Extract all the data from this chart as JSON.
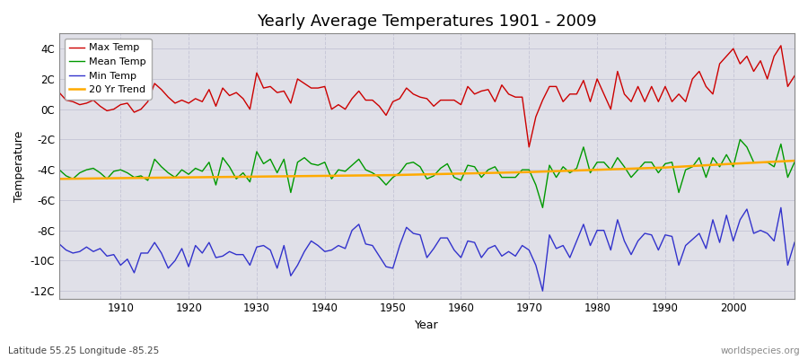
{
  "title": "Yearly Average Temperatures 1901 - 2009",
  "xlabel": "Year",
  "ylabel": "Temperature",
  "subtitle_lat": "Latitude 55.25 Longitude -85.25",
  "credit": "worldspecies.org",
  "years": [
    1901,
    1902,
    1903,
    1904,
    1905,
    1906,
    1907,
    1908,
    1909,
    1910,
    1911,
    1912,
    1913,
    1914,
    1915,
    1916,
    1917,
    1918,
    1919,
    1920,
    1921,
    1922,
    1923,
    1924,
    1925,
    1926,
    1927,
    1928,
    1929,
    1930,
    1931,
    1932,
    1933,
    1934,
    1935,
    1936,
    1937,
    1938,
    1939,
    1940,
    1941,
    1942,
    1943,
    1944,
    1945,
    1946,
    1947,
    1948,
    1949,
    1950,
    1951,
    1952,
    1953,
    1954,
    1955,
    1956,
    1957,
    1958,
    1959,
    1960,
    1961,
    1962,
    1963,
    1964,
    1965,
    1966,
    1967,
    1968,
    1969,
    1970,
    1971,
    1972,
    1973,
    1974,
    1975,
    1976,
    1977,
    1978,
    1979,
    1980,
    1981,
    1982,
    1983,
    1984,
    1985,
    1986,
    1987,
    1988,
    1989,
    1990,
    1991,
    1992,
    1993,
    1994,
    1995,
    1996,
    1997,
    1998,
    1999,
    2000,
    2001,
    2002,
    2003,
    2004,
    2005,
    2006,
    2007,
    2008,
    2009
  ],
  "max_temp": [
    1.1,
    0.6,
    0.5,
    0.3,
    0.4,
    0.6,
    0.2,
    -0.1,
    0.0,
    0.3,
    0.4,
    -0.2,
    0.0,
    0.5,
    1.7,
    1.3,
    0.8,
    0.4,
    0.6,
    0.4,
    0.7,
    0.5,
    1.3,
    0.2,
    1.4,
    0.9,
    1.1,
    0.7,
    0.0,
    2.4,
    1.4,
    1.5,
    1.1,
    1.2,
    0.4,
    2.0,
    1.7,
    1.4,
    1.4,
    1.5,
    0.0,
    0.3,
    0.0,
    0.7,
    1.2,
    0.6,
    0.6,
    0.2,
    -0.4,
    0.5,
    0.7,
    1.4,
    1.0,
    0.8,
    0.7,
    0.2,
    0.6,
    0.6,
    0.6,
    0.3,
    1.5,
    1.0,
    1.2,
    1.3,
    0.5,
    1.6,
    1.0,
    0.8,
    0.8,
    -2.5,
    -0.5,
    0.6,
    1.5,
    1.5,
    0.5,
    1.0,
    1.0,
    1.9,
    0.5,
    2.0,
    1.0,
    0.0,
    2.5,
    1.0,
    0.5,
    1.5,
    0.5,
    1.5,
    0.5,
    1.5,
    0.5,
    1.0,
    0.5,
    2.0,
    2.5,
    1.5,
    1.0,
    3.0,
    3.5,
    4.0,
    3.0,
    3.5,
    2.5,
    3.2,
    2.0,
    3.5,
    4.2,
    1.5,
    2.2
  ],
  "mean_temp": [
    -4.0,
    -4.4,
    -4.6,
    -4.2,
    -4.0,
    -3.9,
    -4.2,
    -4.6,
    -4.1,
    -4.0,
    -4.2,
    -4.5,
    -4.4,
    -4.7,
    -3.3,
    -3.8,
    -4.2,
    -4.5,
    -4.0,
    -4.3,
    -3.9,
    -4.1,
    -3.5,
    -5.0,
    -3.2,
    -3.8,
    -4.6,
    -4.2,
    -4.8,
    -2.8,
    -3.6,
    -3.3,
    -4.2,
    -3.3,
    -5.5,
    -3.5,
    -3.2,
    -3.6,
    -3.7,
    -3.5,
    -4.6,
    -4.0,
    -4.1,
    -3.7,
    -3.3,
    -4.0,
    -4.2,
    -4.5,
    -5.0,
    -4.5,
    -4.2,
    -3.6,
    -3.5,
    -3.8,
    -4.6,
    -4.4,
    -3.9,
    -3.6,
    -4.5,
    -4.7,
    -3.7,
    -3.8,
    -4.5,
    -4.0,
    -3.8,
    -4.5,
    -4.5,
    -4.5,
    -4.0,
    -4.0,
    -5.0,
    -6.5,
    -3.7,
    -4.5,
    -3.8,
    -4.2,
    -3.9,
    -2.5,
    -4.2,
    -3.5,
    -3.5,
    -4.0,
    -3.2,
    -3.8,
    -4.5,
    -4.0,
    -3.5,
    -3.5,
    -4.2,
    -3.6,
    -3.5,
    -5.5,
    -4.0,
    -3.8,
    -3.2,
    -4.5,
    -3.2,
    -3.8,
    -3.0,
    -3.8,
    -2.0,
    -2.5,
    -3.5,
    -3.5,
    -3.5,
    -3.8,
    -2.3,
    -4.5,
    -3.5
  ],
  "min_temp": [
    -8.9,
    -9.3,
    -9.5,
    -9.4,
    -9.1,
    -9.4,
    -9.2,
    -9.7,
    -9.6,
    -10.3,
    -9.9,
    -10.8,
    -9.5,
    -9.5,
    -8.8,
    -9.5,
    -10.5,
    -10.0,
    -9.2,
    -10.4,
    -9.0,
    -9.5,
    -8.8,
    -9.8,
    -9.7,
    -9.4,
    -9.6,
    -9.6,
    -10.3,
    -9.1,
    -9.0,
    -9.3,
    -10.5,
    -9.0,
    -11.0,
    -10.3,
    -9.4,
    -8.7,
    -9.0,
    -9.4,
    -9.3,
    -9.0,
    -9.2,
    -8.0,
    -7.6,
    -8.9,
    -9.0,
    -9.7,
    -10.4,
    -10.5,
    -9.0,
    -7.8,
    -8.2,
    -8.3,
    -9.8,
    -9.2,
    -8.5,
    -8.5,
    -9.3,
    -9.8,
    -8.7,
    -8.8,
    -9.8,
    -9.2,
    -9.0,
    -9.7,
    -9.4,
    -9.7,
    -9.0,
    -9.3,
    -10.3,
    -12.0,
    -8.3,
    -9.2,
    -9.0,
    -9.8,
    -8.7,
    -7.6,
    -9.0,
    -8.0,
    -8.0,
    -9.3,
    -7.3,
    -8.7,
    -9.6,
    -8.7,
    -8.2,
    -8.3,
    -9.3,
    -8.3,
    -8.4,
    -10.3,
    -9.0,
    -8.6,
    -8.2,
    -9.2,
    -7.3,
    -8.8,
    -7.0,
    -8.7,
    -7.3,
    -6.6,
    -8.2,
    -8.0,
    -8.2,
    -8.7,
    -6.5,
    -10.3,
    -8.8
  ],
  "trend_years": [
    1901,
    1910,
    1920,
    1930,
    1940,
    1950,
    1960,
    1970,
    1980,
    1990,
    2000,
    2009
  ],
  "trend_values": [
    -4.6,
    -4.55,
    -4.5,
    -4.45,
    -4.4,
    -4.35,
    -4.25,
    -4.15,
    -4.0,
    -3.85,
    -3.6,
    -3.4
  ],
  "max_color": "#cc0000",
  "mean_color": "#009900",
  "min_color": "#3333cc",
  "trend_color": "#ffaa00",
  "fig_bg_color": "#ffffff",
  "plot_bg_color": "#e0e0e8",
  "ylim": [
    -12.5,
    5.0
  ],
  "yticks": [
    -12,
    -10,
    -8,
    -6,
    -4,
    -2,
    0,
    2,
    4
  ],
  "ytick_labels": [
    "-12C",
    "-10C",
    "-8C",
    "-6C",
    "-4C",
    "-2C",
    "0C",
    "2C",
    "4C"
  ],
  "vgrid_color": "#c8c8d8",
  "hgrid_color": "#c8c8d8",
  "linewidth": 1.0,
  "trend_linewidth": 1.8,
  "title_fontsize": 13,
  "axis_label_fontsize": 9,
  "tick_fontsize": 8.5,
  "legend_fontsize": 8,
  "annotation_fontsize": 7.5
}
